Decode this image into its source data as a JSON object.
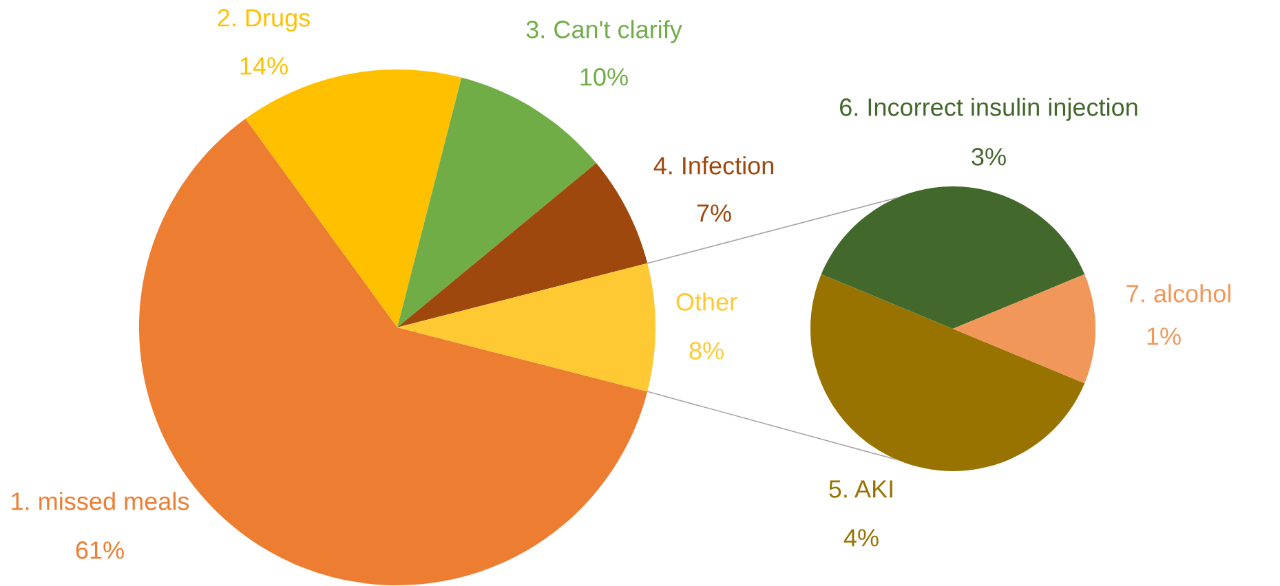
{
  "chart_data": [
    {
      "type": "pie",
      "categories": [
        "1. missed meals",
        "2. Drugs",
        "3. Can't clarify",
        "4. Infection",
        "Other"
      ],
      "values": [
        61,
        14,
        10,
        7,
        8
      ],
      "colors": [
        "#ED7D31",
        "#FFC000",
        "#70AD47",
        "#9E480E",
        "#FFC933"
      ],
      "value_labels": [
        "61%",
        "14%",
        "10%",
        "7%",
        "8%"
      ]
    },
    {
      "type": "pie",
      "categories": [
        "5. AKI",
        "6. Incorrect insulin injection",
        "7. alcohol"
      ],
      "values": [
        4,
        3,
        1
      ],
      "colors": [
        "#997300",
        "#43682B",
        "#F1975A"
      ],
      "value_labels": [
        "4%",
        "3%",
        "1%"
      ]
    }
  ]
}
